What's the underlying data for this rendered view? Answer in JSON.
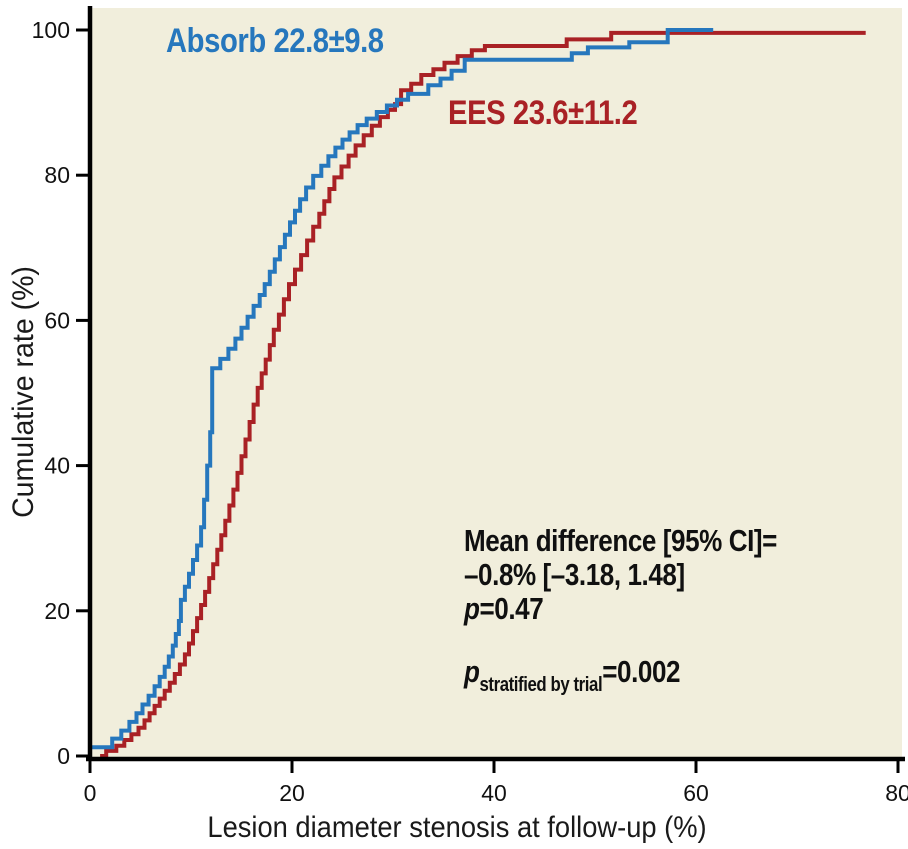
{
  "figure": {
    "background": "#ffffff",
    "plot_background": "#f1eedc",
    "axis_color": "#000000",
    "tick_label_color": "#111111"
  },
  "chart_data": {
    "type": "line",
    "subtype": "cumulative-step-frequency",
    "xlabel": "Lesion diameter stenosis at follow-up (%)",
    "ylabel": "Cumulative rate (%)",
    "xlim": [
      0,
      80
    ],
    "ylim": [
      0,
      100
    ],
    "x_ticks": [
      0,
      20,
      40,
      60,
      80
    ],
    "y_ticks": [
      0,
      20,
      40,
      60,
      80,
      100
    ],
    "grid": false,
    "legend_position": "inline-curve-labels",
    "series": [
      {
        "name": "Absorb",
        "label": "Absorb 22.8±9.8",
        "mean": 22.8,
        "sd": 9.8,
        "color": "#2677bd",
        "points": [
          [
            0,
            1.2
          ],
          [
            2.2,
            2.4
          ],
          [
            3.1,
            3.5
          ],
          [
            3.9,
            4.7
          ],
          [
            4.6,
            5.9
          ],
          [
            5.2,
            7.1
          ],
          [
            5.8,
            8.3
          ],
          [
            6.4,
            9.6
          ],
          [
            6.9,
            10.9
          ],
          [
            7.4,
            12.3
          ],
          [
            7.8,
            13.7
          ],
          [
            8.2,
            15.2
          ],
          [
            8.5,
            16.8
          ],
          [
            8.8,
            18.6
          ],
          [
            9.0,
            21.5
          ],
          [
            9.4,
            23.3
          ],
          [
            9.8,
            25.1
          ],
          [
            10.2,
            27.0
          ],
          [
            10.6,
            29.0
          ],
          [
            11.0,
            31.5
          ],
          [
            11.3,
            35.3
          ],
          [
            11.6,
            40.0
          ],
          [
            11.9,
            44.6
          ],
          [
            12.1,
            53.4
          ],
          [
            12.9,
            54.7
          ],
          [
            13.7,
            56.1
          ],
          [
            14.4,
            57.5
          ],
          [
            15.0,
            59.0
          ],
          [
            15.6,
            60.5
          ],
          [
            16.2,
            62.0
          ],
          [
            16.8,
            63.5
          ],
          [
            17.3,
            65.0
          ],
          [
            17.8,
            66.7
          ],
          [
            18.3,
            68.4
          ],
          [
            18.8,
            70.1
          ],
          [
            19.3,
            71.8
          ],
          [
            19.8,
            73.5
          ],
          [
            20.3,
            75.1
          ],
          [
            20.8,
            76.7
          ],
          [
            21.4,
            78.3
          ],
          [
            22.1,
            79.9
          ],
          [
            22.9,
            81.3
          ],
          [
            23.6,
            82.6
          ],
          [
            24.3,
            83.8
          ],
          [
            25.0,
            84.9
          ],
          [
            25.7,
            85.9
          ],
          [
            26.5,
            86.9
          ],
          [
            27.4,
            87.8
          ],
          [
            28.4,
            88.7
          ],
          [
            29.4,
            89.6
          ],
          [
            30.4,
            90.4
          ],
          [
            31.5,
            91.2
          ],
          [
            33.5,
            92.4
          ],
          [
            34.7,
            93.3
          ],
          [
            35.8,
            94.4
          ],
          [
            37.1,
            95.9
          ],
          [
            47.7,
            96.8
          ],
          [
            49.3,
            97.6
          ],
          [
            53.4,
            98.3
          ],
          [
            57.2,
            100
          ],
          [
            61.7,
            100
          ]
        ]
      },
      {
        "name": "EES",
        "label": "EES 23.6±11.2",
        "mean": 23.6,
        "sd": 11.2,
        "color": "#a92125",
        "points": [
          [
            1.0,
            0
          ],
          [
            1.6,
            0.7
          ],
          [
            2.6,
            1.4
          ],
          [
            3.4,
            2.2
          ],
          [
            4.1,
            3.0
          ],
          [
            4.8,
            3.9
          ],
          [
            5.4,
            4.9
          ],
          [
            5.9,
            5.9
          ],
          [
            6.4,
            6.9
          ],
          [
            6.9,
            7.9
          ],
          [
            7.4,
            9.0
          ],
          [
            7.9,
            10.1
          ],
          [
            8.4,
            11.3
          ],
          [
            8.9,
            12.6
          ],
          [
            9.4,
            14.0
          ],
          [
            9.8,
            15.5
          ],
          [
            10.2,
            17.2
          ],
          [
            10.6,
            19.0
          ],
          [
            11.0,
            20.8
          ],
          [
            11.4,
            22.6
          ],
          [
            11.8,
            24.5
          ],
          [
            12.2,
            26.4
          ],
          [
            12.6,
            28.4
          ],
          [
            13.0,
            30.4
          ],
          [
            13.4,
            32.4
          ],
          [
            13.8,
            34.5
          ],
          [
            14.2,
            36.7
          ],
          [
            14.6,
            39.0
          ],
          [
            15.0,
            41.3
          ],
          [
            15.4,
            43.6
          ],
          [
            15.8,
            46.0
          ],
          [
            16.2,
            48.4
          ],
          [
            16.6,
            50.7
          ],
          [
            17.0,
            52.7
          ],
          [
            17.4,
            54.6
          ],
          [
            17.8,
            56.6
          ],
          [
            18.2,
            58.7
          ],
          [
            18.7,
            60.8
          ],
          [
            19.2,
            62.9
          ],
          [
            19.7,
            65.0
          ],
          [
            20.3,
            67.0
          ],
          [
            20.9,
            69.0
          ],
          [
            21.5,
            71.0
          ],
          [
            22.1,
            72.9
          ],
          [
            22.7,
            74.7
          ],
          [
            23.2,
            76.4
          ],
          [
            23.7,
            78.1
          ],
          [
            24.2,
            79.7
          ],
          [
            24.9,
            81.2
          ],
          [
            25.6,
            82.7
          ],
          [
            26.3,
            84.1
          ],
          [
            27.1,
            85.5
          ],
          [
            27.9,
            86.8
          ],
          [
            28.7,
            88.0
          ],
          [
            29.5,
            89.0
          ],
          [
            30.2,
            89.8
          ],
          [
            30.8,
            91.7
          ],
          [
            31.8,
            92.6
          ],
          [
            32.8,
            93.8
          ],
          [
            34.0,
            94.6
          ],
          [
            35.1,
            95.5
          ],
          [
            36.4,
            96.4
          ],
          [
            37.8,
            97.2
          ],
          [
            39.1,
            97.8
          ],
          [
            47.2,
            98.7
          ],
          [
            51.6,
            99.6
          ],
          [
            76.8,
            99.6
          ]
        ]
      }
    ],
    "annotations": {
      "mean_difference_line1": "Mean difference [95% CI]=",
      "mean_difference_line2": "–0.8% [–3.18, 1.48]",
      "p_line_prefix": "p",
      "p_line_value": "=0.47",
      "p_stratified_prefix": "p",
      "p_stratified_sub": "stratified by trial",
      "p_stratified_value": "=0.002"
    }
  }
}
